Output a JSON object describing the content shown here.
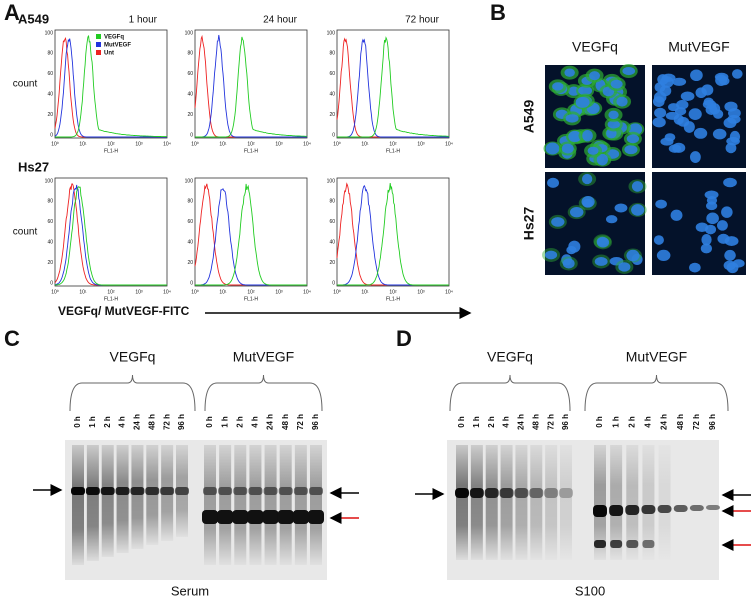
{
  "panel_a": {
    "label": "A",
    "rows": [
      "A549",
      "Hs27"
    ],
    "times": [
      "1 hour",
      "24 hour",
      "72 hour"
    ],
    "legend": [
      {
        "name": "VEGFq",
        "color": "#22cc22"
      },
      {
        "name": "MutVEGF",
        "color": "#2233dd"
      },
      {
        "name": "Unt",
        "color": "#ee2222"
      }
    ],
    "y_label": "count",
    "y_ticks": [
      "100",
      "80",
      "60",
      "40",
      "20",
      "0"
    ],
    "x_ticks": [
      "10⁰",
      "10¹",
      "10²",
      "10³",
      "10⁴"
    ],
    "x_label": "FL1-H",
    "caption": "VEGFq/ MutVEGF-FITC"
  },
  "panel_b": {
    "label": "B",
    "columns": [
      "VEGFq",
      "MutVEGF"
    ],
    "rows": [
      "A549",
      "Hs27"
    ]
  },
  "panel_c": {
    "label": "C",
    "groups": [
      "VEGFq",
      "MutVEGF"
    ],
    "lanes": [
      "0 h",
      "1 h",
      "2 h",
      "4 h",
      "24 h",
      "48 h",
      "72 h",
      "96 h"
    ],
    "caption": "Serum"
  },
  "panel_d": {
    "label": "D",
    "groups": [
      "VEGFq",
      "MutVEGF"
    ],
    "lanes": [
      "0 h",
      "1 h",
      "2 h",
      "4 h",
      "24 h",
      "48 h",
      "72 h",
      "96 h"
    ],
    "caption": "S100"
  }
}
